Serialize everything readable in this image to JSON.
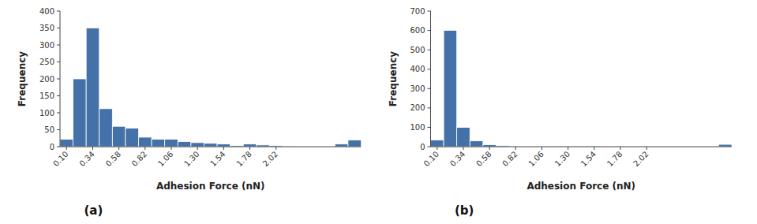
{
  "chart_data": [
    {
      "type": "histogram",
      "title": "(a)",
      "xlabel": "Adhesion Force (nN)",
      "ylabel": "Frequency",
      "bins": [
        0.04,
        0.16,
        0.28,
        0.4,
        0.52,
        0.64,
        0.76,
        0.88,
        1.0,
        1.12,
        1.24,
        1.36,
        1.48,
        1.6,
        1.72,
        1.84,
        1.96,
        2.08,
        2.2,
        2.32,
        2.44,
        2.56,
        2.68,
        2.8
      ],
      "values": [
        22,
        200,
        350,
        112,
        60,
        55,
        28,
        22,
        22,
        15,
        12,
        10,
        8,
        3,
        8,
        5,
        3,
        2,
        1,
        1,
        0,
        8,
        20
      ],
      "color": "#4472a8",
      "xlim": [
        0.04,
        2.8
      ],
      "xticks": [
        {
          "value": 0.1,
          "label": "0.10"
        },
        0.34,
        0.58,
        0.82,
        1.06,
        {
          "value": 1.3,
          "label": "1.30"
        },
        1.54,
        1.78,
        2.02
      ],
      "ylim": [
        0,
        400
      ],
      "yticks": [
        0,
        50,
        100,
        150,
        200,
        250,
        300,
        350,
        400
      ],
      "grid": false
    },
    {
      "type": "histogram",
      "title": "(b)",
      "xlabel": "Adhesion Force (nN)",
      "ylabel": "Frequency",
      "bins": [
        0.04,
        0.16,
        0.28,
        0.4,
        0.52,
        0.64,
        0.76,
        0.88,
        1.0,
        1.12,
        1.24,
        1.36,
        1.48,
        1.6,
        1.72,
        1.84,
        1.96,
        2.08,
        2.2,
        2.32,
        2.44,
        2.56,
        2.68,
        2.8
      ],
      "values": [
        35,
        600,
        100,
        30,
        10,
        5,
        3,
        2,
        2,
        1,
        1,
        1,
        1,
        0,
        0,
        0,
        0,
        0,
        0,
        0,
        0,
        0,
        12
      ],
      "color": "#4472a8",
      "xlim": [
        0.04,
        2.8
      ],
      "xticks": [
        {
          "value": 0.1,
          "label": "0.10"
        },
        0.34,
        0.58,
        0.82,
        1.06,
        {
          "value": 1.3,
          "label": "1.30"
        },
        1.54,
        1.78,
        2.02
      ],
      "ylim": [
        0,
        700
      ],
      "yticks": [
        0,
        100,
        200,
        300,
        400,
        500,
        600,
        700
      ],
      "grid": false
    }
  ]
}
